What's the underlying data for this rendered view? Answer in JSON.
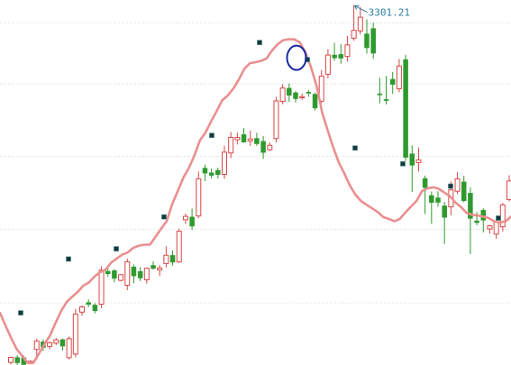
{
  "chart_data": {
    "type": "candlestick",
    "title": "",
    "xlabel": "",
    "ylabel": "",
    "ylim": [
      2670,
      3310
    ],
    "grid": true,
    "gridlines_y": [
      3270,
      3163,
      3036,
      2908,
      2779
    ],
    "peak_annotation": {
      "value": 3301.21,
      "text": "3301.21",
      "at_index": 53
    },
    "highlight_marker_index": 56,
    "colors": {
      "up": "#d94747",
      "down": "#2e9a2e",
      "ma_line": "#ea8f8f",
      "ma_dot": "#123a3a",
      "label": "#2f7fa0",
      "highlight": "#1a2aa0",
      "grid": "#d6d6d6"
    },
    "candles": [
      {
        "o": 2674.6,
        "c": 2683.3,
        "h": 2684.9,
        "l": 2671.1,
        "up": true
      },
      {
        "o": 2683.1,
        "c": 2673.9,
        "h": 2687.5,
        "l": 2669.6,
        "up": false
      },
      {
        "o": 2682.9,
        "c": 2670.7,
        "h": 2686.8,
        "l": 2665.8,
        "up": false
      },
      {
        "o": 2674.1,
        "c": 2676.6,
        "h": 2678.5,
        "l": 2671.0,
        "up": true
      },
      {
        "o": 2697.3,
        "c": 2712.1,
        "h": 2716.1,
        "l": 2679.6,
        "up": true
      },
      {
        "o": 2710.5,
        "c": 2700.7,
        "h": 2715.0,
        "l": 2694.9,
        "up": false
      },
      {
        "o": 2702.6,
        "c": 2709.1,
        "h": 2711.4,
        "l": 2697.6,
        "up": true
      },
      {
        "o": 2708.4,
        "c": 2714.1,
        "h": 2717.7,
        "l": 2704.7,
        "up": true
      },
      {
        "o": 2714.4,
        "c": 2703.1,
        "h": 2716.5,
        "l": 2695.5,
        "up": false
      },
      {
        "o": 2682.9,
        "c": 2716.1,
        "h": 2720.2,
        "l": 2679.7,
        "up": true
      },
      {
        "o": 2689.1,
        "c": 2759.5,
        "h": 2768.5,
        "l": 2683.8,
        "up": true
      },
      {
        "o": 2762.7,
        "c": 2771.8,
        "h": 2774.5,
        "l": 2756.3,
        "up": true
      },
      {
        "o": 2779.5,
        "c": 2776.2,
        "h": 2784.9,
        "l": 2771.3,
        "up": false
      },
      {
        "o": 2775.1,
        "c": 2765.2,
        "h": 2778.4,
        "l": 2760.8,
        "up": false
      },
      {
        "o": 2776.7,
        "c": 2836.4,
        "h": 2843.2,
        "l": 2769.8,
        "up": true
      },
      {
        "o": 2834.3,
        "c": 2829.9,
        "h": 2838.9,
        "l": 2825.0,
        "up": false
      },
      {
        "o": 2835.4,
        "c": 2821.9,
        "h": 2838.1,
        "l": 2815.0,
        "up": false
      },
      {
        "o": 2818.4,
        "c": 2828.3,
        "h": 2829.5,
        "l": 2816.4,
        "up": true
      },
      {
        "o": 2809.8,
        "c": 2850.9,
        "h": 2856.6,
        "l": 2801.3,
        "up": true
      },
      {
        "o": 2842.0,
        "c": 2826.2,
        "h": 2846.4,
        "l": 2813.4,
        "up": false
      },
      {
        "o": 2834.1,
        "c": 2822.5,
        "h": 2841.5,
        "l": 2817.0,
        "up": false
      },
      {
        "o": 2819.4,
        "c": 2839.6,
        "h": 2841.3,
        "l": 2812.6,
        "up": true
      },
      {
        "o": 2844.6,
        "c": 2839.3,
        "h": 2852.0,
        "l": 2837.2,
        "up": false
      },
      {
        "o": 2836.7,
        "c": 2840.1,
        "h": 2845.0,
        "l": 2826.1,
        "up": true
      },
      {
        "o": 2848.0,
        "c": 2862.4,
        "h": 2878.2,
        "l": 2841.0,
        "up": true
      },
      {
        "o": 2862.2,
        "c": 2850.2,
        "h": 2870.5,
        "l": 2844.2,
        "up": false
      },
      {
        "o": 2850.7,
        "c": 2904.5,
        "h": 2909.3,
        "l": 2849.1,
        "up": true
      },
      {
        "o": 2924.6,
        "c": 2930.6,
        "h": 2935.4,
        "l": 2917.4,
        "up": true
      },
      {
        "o": 2929.5,
        "c": 2913.5,
        "h": 2944.4,
        "l": 2906.9,
        "up": false
      },
      {
        "o": 2931.3,
        "c": 2996.6,
        "h": 3009.2,
        "l": 2927.1,
        "up": true
      },
      {
        "o": 3015.2,
        "c": 3006.4,
        "h": 3021.5,
        "l": 2992.5,
        "up": false
      },
      {
        "o": 3006.9,
        "c": 3002.5,
        "h": 3014.4,
        "l": 2997.1,
        "up": false
      },
      {
        "o": 3011.4,
        "c": 3003.9,
        "h": 3016.1,
        "l": 2996.9,
        "up": false
      },
      {
        "o": 3004.2,
        "c": 3043.2,
        "h": 3054.3,
        "l": 2996.4,
        "up": true
      },
      {
        "o": 3041.8,
        "c": 3069.1,
        "h": 3078.7,
        "l": 3032.7,
        "up": true
      },
      {
        "o": 3065.1,
        "c": 3069.0,
        "h": 3077.2,
        "l": 3056.6,
        "up": true
      },
      {
        "o": 3074.0,
        "c": 3060.8,
        "h": 3085.4,
        "l": 3059.9,
        "up": false
      },
      {
        "o": 3062.8,
        "c": 3066.3,
        "h": 3081.0,
        "l": 3054.0,
        "up": true
      },
      {
        "o": 3067.3,
        "c": 3057.9,
        "h": 3077.2,
        "l": 3054.3,
        "up": false
      },
      {
        "o": 3062.3,
        "c": 3042.7,
        "h": 3071.4,
        "l": 3031.4,
        "up": false
      },
      {
        "o": 3047.5,
        "c": 3055.2,
        "h": 3060.2,
        "l": 3044.9,
        "up": true
      },
      {
        "o": 3067.0,
        "c": 3133.1,
        "h": 3140.3,
        "l": 3060.2,
        "up": true
      },
      {
        "o": 3132.3,
        "c": 3155.6,
        "h": 3162.4,
        "l": 3127.3,
        "up": true
      },
      {
        "o": 3155.3,
        "c": 3142.9,
        "h": 3163.7,
        "l": 3131.2,
        "up": false
      },
      {
        "o": 3147.3,
        "c": 3136.9,
        "h": 3150.0,
        "l": 3130.3,
        "up": false
      },
      {
        "o": 3139.4,
        "c": 3140.5,
        "h": 3146.1,
        "l": 3135.4,
        "up": true
      },
      {
        "o": 3148.4,
        "c": 3147.9,
        "h": 3152.1,
        "l": 3140.4,
        "up": false
      },
      {
        "o": 3144.8,
        "c": 3120.5,
        "h": 3147.8,
        "l": 3116.4,
        "up": false
      },
      {
        "o": 3132.5,
        "c": 3176.6,
        "h": 3186.7,
        "l": 3129.1,
        "up": true
      },
      {
        "o": 3179.8,
        "c": 3213.5,
        "h": 3223.9,
        "l": 3172.6,
        "up": true
      },
      {
        "o": 3213.5,
        "c": 3208.4,
        "h": 3234.7,
        "l": 3203.3,
        "up": false
      },
      {
        "o": 3214.5,
        "c": 3208.0,
        "h": 3232.3,
        "l": 3198.1,
        "up": false
      },
      {
        "o": 3211.1,
        "c": 3231.2,
        "h": 3247.0,
        "l": 3202.1,
        "up": true
      },
      {
        "o": 3243.1,
        "c": 3256.8,
        "h": 3301.2,
        "l": 3238.5,
        "up": true
      },
      {
        "o": 3255.9,
        "c": 3279.7,
        "h": 3297.3,
        "l": 3249.4,
        "up": true
      },
      {
        "o": 3250.6,
        "c": 3226.2,
        "h": 3276.1,
        "l": 3215.7,
        "up": false
      },
      {
        "o": 3260.0,
        "c": 3216.7,
        "h": 3270.3,
        "l": 3206.7,
        "up": false
      },
      {
        "o": 3145.5,
        "c": 3145.2,
        "h": 3173.5,
        "l": 3128.9,
        "up": false
      },
      {
        "o": 3135.6,
        "c": 3134.5,
        "h": 3177.2,
        "l": 3127.0,
        "up": false
      },
      {
        "o": 3171.0,
        "c": 3162.1,
        "h": 3183.7,
        "l": 3145.1,
        "up": false
      },
      {
        "o": 3154.4,
        "c": 3194.2,
        "h": 3206.6,
        "l": 3148.2,
        "up": true
      },
      {
        "o": 3205.6,
        "c": 3034.1,
        "h": 3213.7,
        "l": 3027.8,
        "up": false
      },
      {
        "o": 3040.3,
        "c": 3020.2,
        "h": 3054.9,
        "l": 2973.3,
        "up": false
      },
      {
        "o": 3024.9,
        "c": 3029.7,
        "h": 3051.3,
        "l": 3009.3,
        "up": true
      },
      {
        "o": 2997.1,
        "c": 2981.0,
        "h": 3002.2,
        "l": 2934.7,
        "up": false
      },
      {
        "o": 2967.2,
        "c": 2955.0,
        "h": 2974.2,
        "l": 2917.5,
        "up": false
      },
      {
        "o": 2963.1,
        "c": 2955.2,
        "h": 2974.6,
        "l": 2947.8,
        "up": false
      },
      {
        "o": 2949.1,
        "c": 2928.8,
        "h": 2956.0,
        "l": 2882.3,
        "up": false
      },
      {
        "o": 2947.2,
        "c": 2977.0,
        "h": 2991.9,
        "l": 2932.6,
        "up": true
      },
      {
        "o": 2974.7,
        "c": 2996.3,
        "h": 3008.2,
        "l": 2969.6,
        "up": true
      },
      {
        "o": 2991.1,
        "c": 2958.1,
        "h": 3002.0,
        "l": 2955.2,
        "up": false
      },
      {
        "o": 2971.2,
        "c": 2927.0,
        "h": 2981.5,
        "l": 2864.5,
        "up": false
      },
      {
        "o": 2922.7,
        "c": 2919.7,
        "h": 2938.3,
        "l": 2915.0,
        "up": false
      },
      {
        "o": 2941.5,
        "c": 2923.8,
        "h": 2944.7,
        "l": 2902.4,
        "up": false
      },
      {
        "o": 2908.5,
        "c": 2914.2,
        "h": 2915.8,
        "l": 2900.4,
        "up": true
      },
      {
        "o": 2899.5,
        "c": 2920.3,
        "h": 2922.2,
        "l": 2891.1,
        "up": true
      },
      {
        "o": 2912.3,
        "c": 2950.8,
        "h": 2954.3,
        "l": 2904.0,
        "up": true
      },
      {
        "o": 2960.1,
        "c": 2992.6,
        "h": 3002.7,
        "l": 2956.9,
        "up": true
      }
    ],
    "ma_line": [
      2761.4,
      2738.8,
      2717.8,
      2698.0,
      2685.6,
      2673.7,
      2673.7,
      2689.6,
      2706.6,
      2721.5,
      2743.6,
      2764.5,
      2780.5,
      2789.8,
      2798.1,
      2809.0,
      2814.6,
      2824.8,
      2832.7,
      2837.0,
      2849.3,
      2856.7,
      2863.4,
      2867.3,
      2875.4,
      2879.3,
      2881.0,
      2880.9,
      2894.8,
      2908.7,
      2922.0,
      2952.3,
      2974.6,
      2998.4,
      3015.2,
      3037.3,
      3064.1,
      3077.5,
      3097.0,
      3115.1,
      3133.9,
      3142.5,
      3154.2,
      3170.7,
      3189.3,
      3199.2,
      3201.0,
      3203.2,
      3207.6,
      3221.6,
      3232.5,
      3239.5,
      3241.3,
      3240.9,
      3235.6,
      3217.8,
      3192.1,
      3159.5,
      3112.4,
      3081.2,
      3051.5,
      3025.3,
      3005.6,
      2984.7,
      2968.7,
      2957.4,
      2950.8,
      2944.6,
      2938.4,
      2929.3,
      2926.2,
      2922.1,
      2926.2,
      2937.6,
      2948.0,
      2957.8,
      2975.3,
      2979.8,
      2981.7,
      2978.9,
      2972.3,
      2966.1,
      2954.9,
      2947.1,
      2936.8,
      2933.2,
      2932.1,
      2930.1,
      2927.6,
      2921.8,
      2920.0,
      2921.7,
      2930.1
    ],
    "ma_markers": [
      2761.4,
      2855.8,
      2873.7,
      2929.7,
      3072.6,
      3235.5,
      3205.5,
      3050.5,
      3022.8,
      2983.6,
      2927.6
    ]
  }
}
